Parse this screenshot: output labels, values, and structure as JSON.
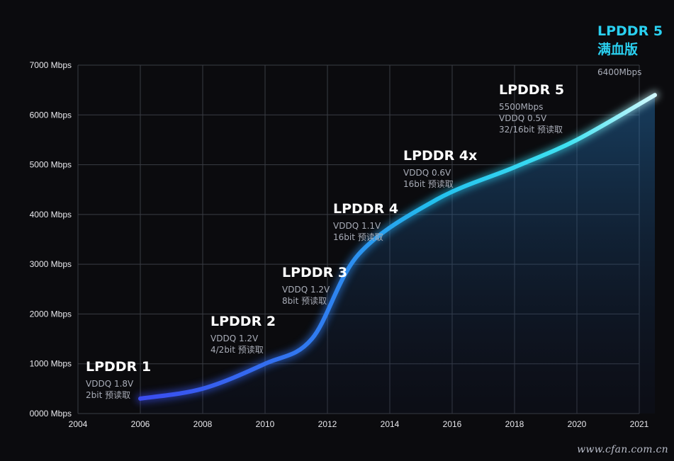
{
  "chart_data": {
    "type": "line",
    "x_ticks": [
      "2004",
      "2006",
      "2008",
      "2010",
      "2012",
      "2014",
      "2016",
      "2018",
      "2020",
      "2021"
    ],
    "y_ticks": [
      "0000 Mbps",
      "1000 Mbps",
      "2000 Mbps",
      "3000 Mbps",
      "4000 Mbps",
      "5000 Mbps",
      "6000 Mbps",
      "7000 Mbps"
    ],
    "ylim": [
      0,
      7000
    ],
    "grid": true,
    "series": [
      {
        "x": [
          2006,
          2008,
          2010,
          2011.5,
          2013,
          2015.5,
          2018,
          2020,
          2022.5
        ],
        "y": [
          300,
          500,
          1000,
          1500,
          3200,
          4300,
          4950,
          5500,
          6400
        ]
      }
    ],
    "annotations": [
      {
        "title": "LPDDR 1",
        "lines": [
          "VDDQ 1.8V",
          "2bit 预读取"
        ]
      },
      {
        "title": "LPDDR 2",
        "lines": [
          "VDDQ 1.2V",
          "4/2bit 预读取"
        ]
      },
      {
        "title": "LPDDR 3",
        "lines": [
          "VDDQ 1.2V",
          "8bit 预读取"
        ]
      },
      {
        "title": "LPDDR 4",
        "lines": [
          "VDDQ 1.1V",
          "16bit 预读取"
        ]
      },
      {
        "title": "LPDDR 4x",
        "lines": [
          "VDDQ 0.6V",
          "16bit 预读取"
        ]
      },
      {
        "title": "LPDDR 5",
        "lines": [
          "5500Mbps",
          "VDDQ 0.5V",
          "32/16bit 预读取"
        ]
      },
      {
        "title": "LPDDR 5",
        "subtitle": "满血版",
        "lines": [
          "6400Mbps"
        ],
        "highlight": true
      }
    ],
    "colors": {
      "line_start": "#3b4cf0",
      "line_mid": "#22b5ee",
      "line_end": "#e8fbff",
      "grid": "#3a3d44",
      "highlight": "#2ad0f0"
    }
  },
  "watermark": "www.cfan.com.cn"
}
